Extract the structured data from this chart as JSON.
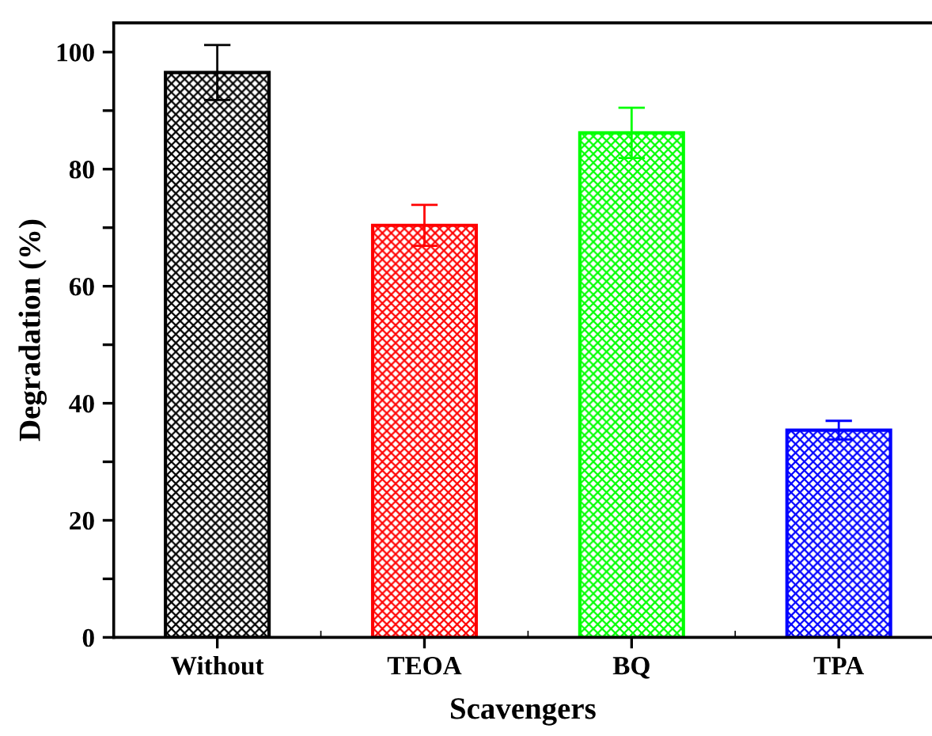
{
  "chart_data": {
    "type": "bar",
    "xlabel": "Scavengers",
    "ylabel": "Degradation (%)",
    "categories": [
      "Without",
      "TEOA",
      "BQ",
      "TPA"
    ],
    "values": [
      96.5,
      70.4,
      86.2,
      35.4
    ],
    "errors": [
      4.7,
      3.5,
      4.3,
      1.6
    ],
    "colors": [
      "#000000",
      "#ff0000",
      "#00ff00",
      "#0000ff"
    ],
    "ylim": [
      0,
      105
    ],
    "yticks": [
      0,
      {
        "value": 10,
        "label": null
      },
      20,
      {
        "value": 30,
        "label": null
      },
      40,
      {
        "value": 50,
        "label": null
      },
      60,
      {
        "value": 70,
        "label": null
      },
      80,
      {
        "value": 90,
        "label": null
      },
      100
    ],
    "grid": false,
    "legend": false
  }
}
